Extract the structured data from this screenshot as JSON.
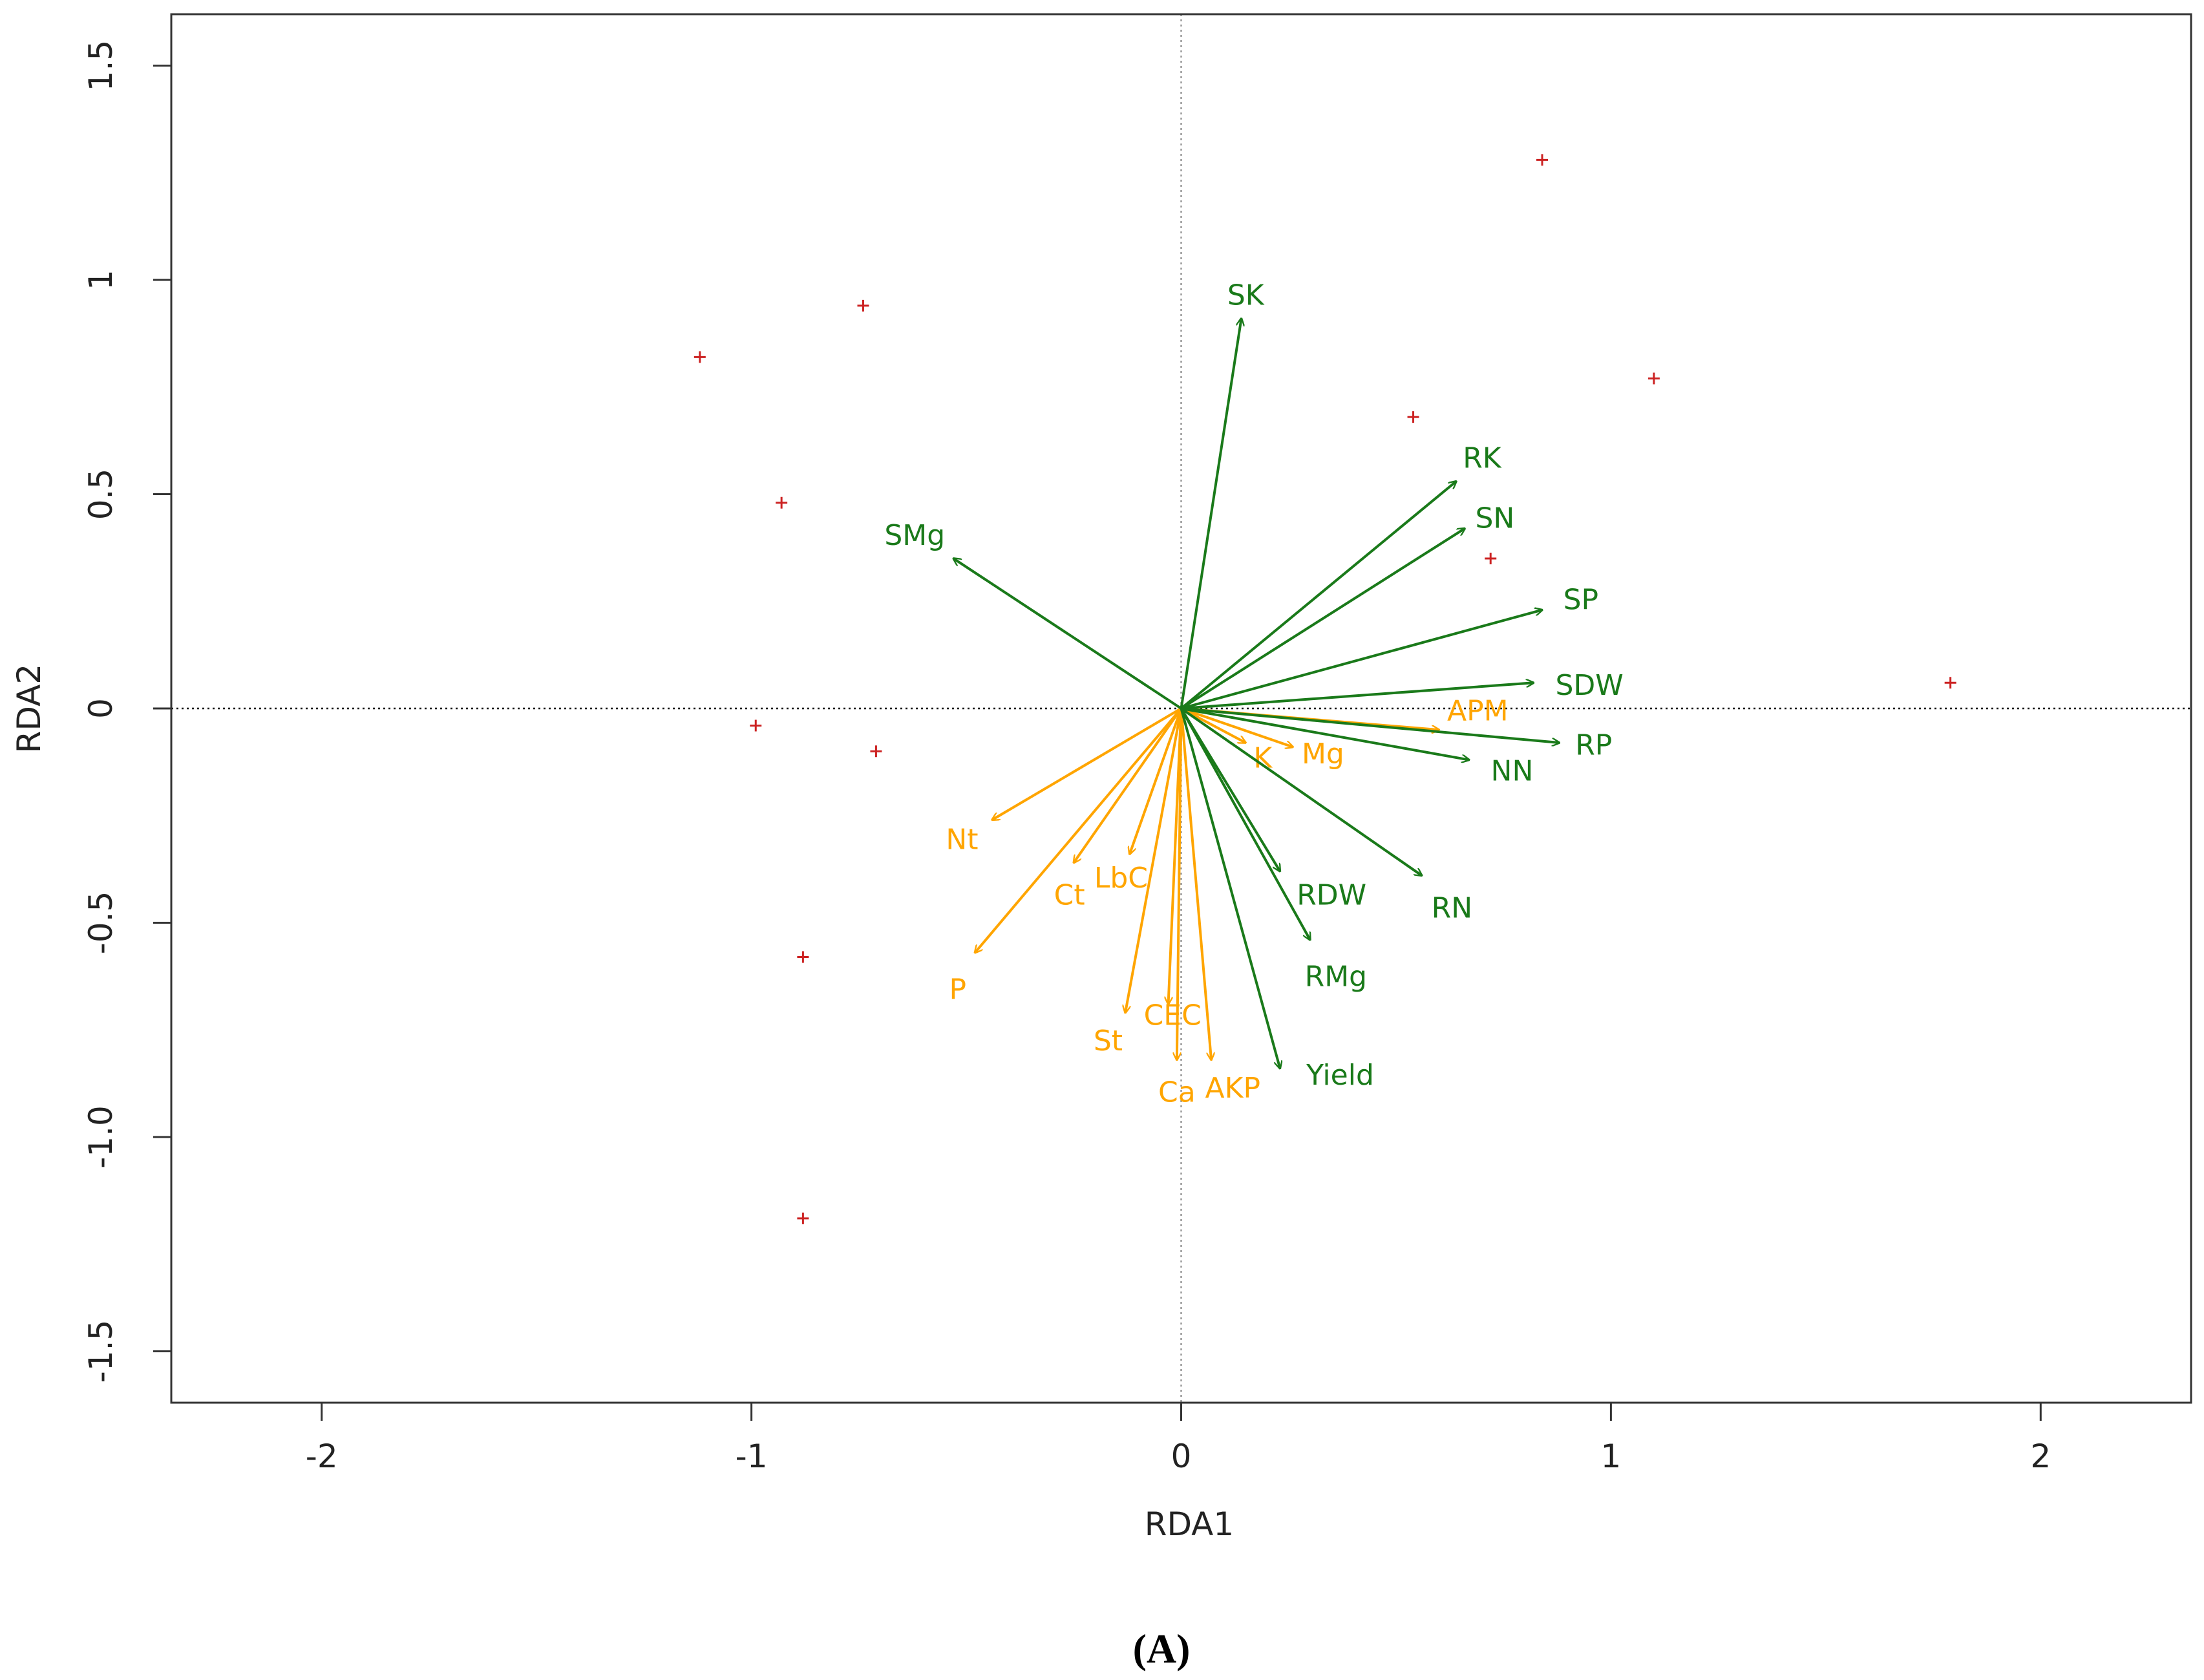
{
  "chart_data": {
    "type": "scatter",
    "subtype": "rda-biplot",
    "title": "",
    "xlabel": "RDA1",
    "ylabel": "RDA2",
    "caption": "(A)",
    "xlim": [
      -2.35,
      2.35
    ],
    "ylim": [
      -1.62,
      1.62
    ],
    "xticks": [
      -2,
      -1,
      0,
      1,
      2
    ],
    "xtick_labels": [
      "-2",
      "-1",
      "0",
      "1",
      "2"
    ],
    "yticks": [
      -1.5,
      -1.0,
      -0.5,
      0,
      0.5,
      1,
      1.5
    ],
    "ytick_labels": [
      "-1.5",
      "-1.0",
      "-0.5",
      "0",
      "0.5",
      "1",
      "1.5"
    ],
    "reference_lines": {
      "x0": "dotted",
      "y0": "dotted"
    },
    "colors": {
      "response": "#1a7a1a",
      "explanatory": "#ffa500",
      "sites": "#cc2222",
      "axis": "#333333",
      "ref_h": "#000000",
      "ref_v": "#999999",
      "caption": "#000000"
    },
    "sites": [
      {
        "x": -1.12,
        "y": 0.82
      },
      {
        "x": -0.74,
        "y": 0.94
      },
      {
        "x": -0.93,
        "y": 0.48
      },
      {
        "x": -0.99,
        "y": -0.04
      },
      {
        "x": -0.71,
        "y": -0.1
      },
      {
        "x": -0.88,
        "y": -0.58
      },
      {
        "x": -0.88,
        "y": -1.19
      },
      {
        "x": 0.54,
        "y": 0.68
      },
      {
        "x": 0.84,
        "y": 1.28
      },
      {
        "x": 1.1,
        "y": 0.77
      },
      {
        "x": 0.72,
        "y": 0.35
      },
      {
        "x": 1.79,
        "y": 0.06
      }
    ],
    "series": [
      {
        "name": "response",
        "color": "#1a7a1a",
        "vectors": [
          {
            "label": "SK",
            "x": 0.14,
            "y": 0.91,
            "lx": 0.15,
            "ly": 0.96
          },
          {
            "label": "RK",
            "x": 0.64,
            "y": 0.53,
            "lx": 0.7,
            "ly": 0.58
          },
          {
            "label": "SN",
            "x": 0.66,
            "y": 0.42,
            "lx": 0.73,
            "ly": 0.44
          },
          {
            "label": "SMg",
            "x": -0.53,
            "y": 0.35,
            "lx": -0.62,
            "ly": 0.4
          },
          {
            "label": "SP",
            "x": 0.84,
            "y": 0.23,
            "lx": 0.93,
            "ly": 0.25
          },
          {
            "label": "SDW",
            "x": 0.82,
            "y": 0.06,
            "lx": 0.95,
            "ly": 0.05
          },
          {
            "label": "RP",
            "x": 0.88,
            "y": -0.08,
            "lx": 0.96,
            "ly": -0.09
          },
          {
            "label": "NN",
            "x": 0.67,
            "y": -0.12,
            "lx": 0.77,
            "ly": -0.15
          },
          {
            "label": "RN",
            "x": 0.56,
            "y": -0.39,
            "lx": 0.63,
            "ly": -0.47
          },
          {
            "label": "RDW",
            "x": 0.23,
            "y": -0.38,
            "lx": 0.35,
            "ly": -0.44
          },
          {
            "label": "RMg",
            "x": 0.3,
            "y": -0.54,
            "lx": 0.36,
            "ly": -0.63
          },
          {
            "label": "Yield",
            "x": 0.23,
            "y": -0.84,
            "lx": 0.37,
            "ly": -0.86
          }
        ]
      },
      {
        "name": "explanatory",
        "color": "#ffa500",
        "vectors": [
          {
            "label": "APM",
            "x": 0.6,
            "y": -0.05,
            "lx": 0.69,
            "ly": -0.01
          },
          {
            "label": "K",
            "x": 0.15,
            "y": -0.08,
            "lx": 0.19,
            "ly": -0.12
          },
          {
            "label": "Mg",
            "x": 0.26,
            "y": -0.09,
            "lx": 0.33,
            "ly": -0.11
          },
          {
            "label": "Nt",
            "x": -0.44,
            "y": -0.26,
            "lx": -0.51,
            "ly": -0.31
          },
          {
            "label": "Ct",
            "x": -0.25,
            "y": -0.36,
            "lx": -0.26,
            "ly": -0.44
          },
          {
            "label": "LbC",
            "x": -0.12,
            "y": -0.34,
            "lx": -0.14,
            "ly": -0.4
          },
          {
            "label": "P",
            "x": -0.48,
            "y": -0.57,
            "lx": -0.52,
            "ly": -0.66
          },
          {
            "label": "St",
            "x": -0.13,
            "y": -0.71,
            "lx": -0.17,
            "ly": -0.78
          },
          {
            "label": "CEC",
            "x": -0.03,
            "y": -0.69,
            "lx": -0.02,
            "ly": -0.72
          },
          {
            "label": "Ca",
            "x": -0.01,
            "y": -0.82,
            "lx": -0.01,
            "ly": -0.9
          },
          {
            "label": "AKP",
            "x": 0.07,
            "y": -0.82,
            "lx": 0.12,
            "ly": -0.89
          }
        ]
      }
    ]
  }
}
